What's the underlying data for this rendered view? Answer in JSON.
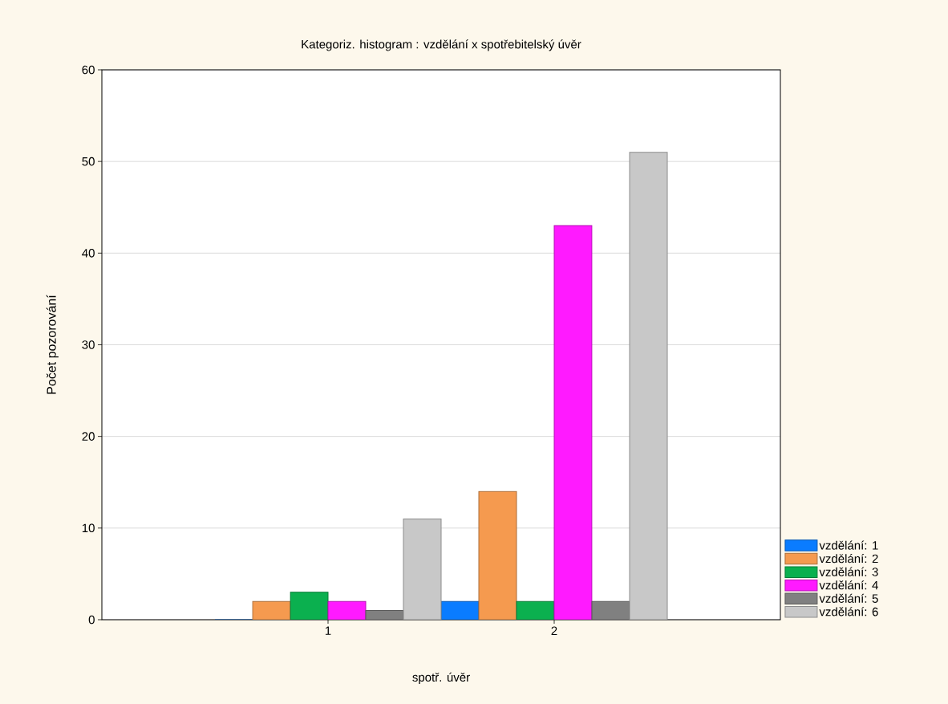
{
  "chart_data": {
    "type": "bar",
    "title": "Kategoriz. histogram : vzdělání x spotřebitelský úvěr",
    "xlabel": "spotř. úvěr",
    "ylabel": "Počet pozorování",
    "categories": [
      "1",
      "2"
    ],
    "series": [
      {
        "name": "vzdělání: 1",
        "color": "#0a7cff",
        "values": [
          0,
          2
        ]
      },
      {
        "name": "vzdělání: 2",
        "color": "#f59a4f",
        "values": [
          2,
          14
        ]
      },
      {
        "name": "vzdělání: 3",
        "color": "#0bb04f",
        "values": [
          3,
          2
        ]
      },
      {
        "name": "vzdělání: 4",
        "color": "#ff1aff",
        "values": [
          2,
          43
        ]
      },
      {
        "name": "vzdělání: 5",
        "color": "#808080",
        "values": [
          1,
          2
        ]
      },
      {
        "name": "vzdělání: 6",
        "color": "#c8c8c8",
        "values": [
          11,
          51
        ]
      }
    ],
    "ylim": [
      0,
      60
    ],
    "yticks": [
      0,
      10,
      20,
      30,
      40,
      50,
      60
    ],
    "grid": "y",
    "legend": "bottom right"
  }
}
